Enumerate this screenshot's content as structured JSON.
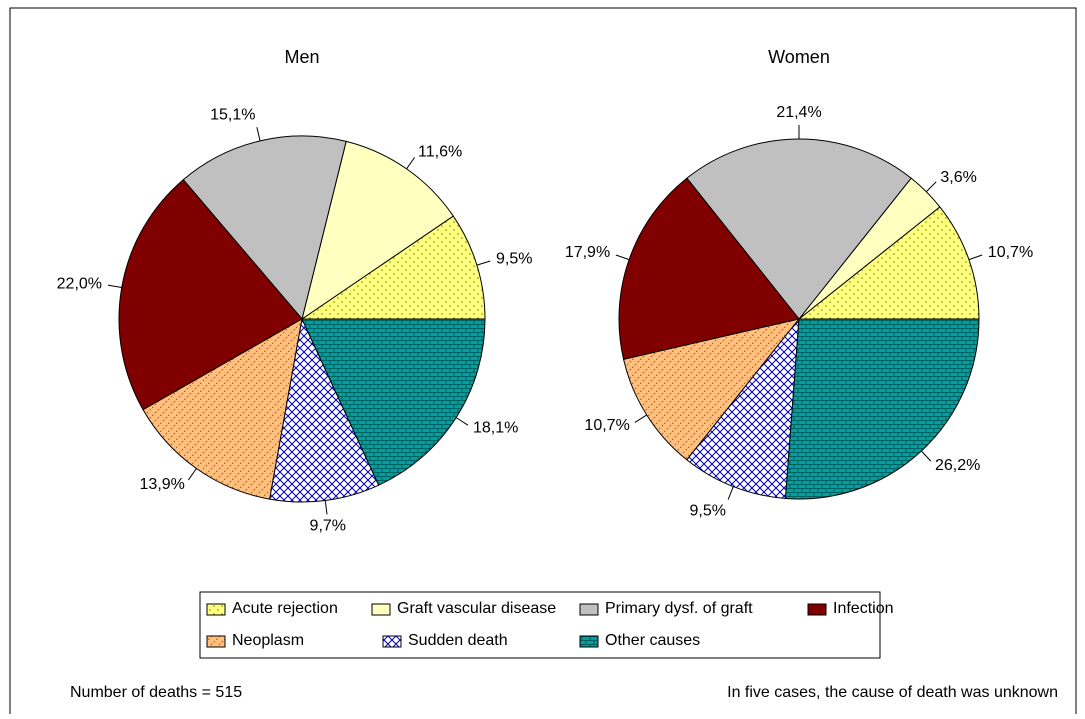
{
  "chart_data": [
    {
      "type": "pie",
      "title": "Men",
      "categories": [
        "Acute rejection",
        "Graft vascular disease",
        "Primary dysf. of graft",
        "Infection",
        "Neoplasm",
        "Sudden death",
        "Other causes"
      ],
      "values": [
        9.5,
        11.6,
        15.1,
        22.0,
        13.9,
        9.7,
        18.1
      ],
      "value_labels": [
        "9,5%",
        "11,6%",
        "15,1%",
        "22,0%",
        "13,9%",
        "9,7%",
        "18,1%"
      ],
      "colors": [
        "#ffff80",
        "#ffffc0",
        "#c0c0c0",
        "#800000",
        "#ffc080",
        "#ffffff",
        "#00a0a0"
      ]
    },
    {
      "type": "pie",
      "title": "Women",
      "categories": [
        "Acute rejection",
        "Graft vascular disease",
        "Primary dysf. of graft",
        "Infection",
        "Neoplasm",
        "Sudden death",
        "Other causes"
      ],
      "values": [
        10.7,
        3.6,
        21.4,
        17.9,
        10.7,
        9.5,
        26.2
      ],
      "value_labels": [
        "10,7%",
        "3,6%",
        "21,4%",
        "17,9%",
        "10,7%",
        "9,5%",
        "26,2%"
      ],
      "colors": [
        "#ffff80",
        "#ffffc0",
        "#c0c0c0",
        "#800000",
        "#ffc080",
        "#ffffff",
        "#00a0a0"
      ]
    }
  ],
  "annotations": [
    "Number of deaths = 515",
    "In five cases, the cause of death was unknown"
  ]
}
